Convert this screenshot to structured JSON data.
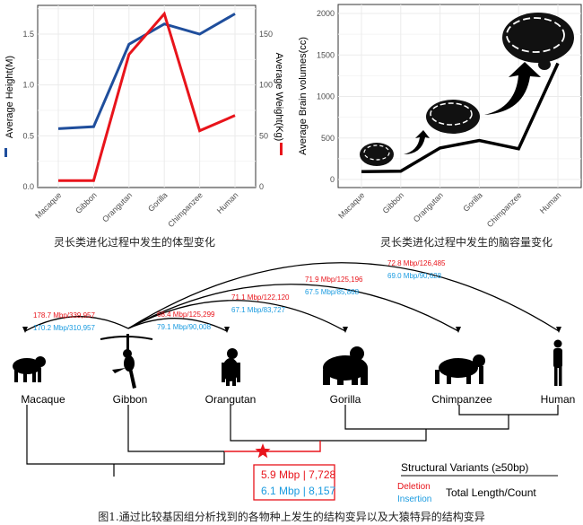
{
  "chart_data": [
    {
      "type": "line",
      "categories": [
        "Macaque",
        "Gibbon",
        "Orangutan",
        "Gorilla",
        "Chimpanzee",
        "Human"
      ],
      "series": [
        {
          "name": "Average Height(M)",
          "axis": "left",
          "color": "#1f4e9c",
          "values": [
            0.57,
            0.59,
            1.4,
            1.6,
            1.5,
            1.7
          ]
        },
        {
          "name": "Average Weight(Kg)",
          "axis": "right",
          "color": "#e8141b",
          "values": [
            6,
            6,
            130,
            170,
            55,
            70
          ]
        }
      ],
      "ylabel": "Average Height(M)",
      "y2label": "Average Weight(Kg)",
      "ylim": [
        0,
        1.78
      ],
      "y2lim": [
        0,
        178
      ],
      "yticks": [
        "0.0",
        "0.5",
        "1.0",
        "1.5"
      ],
      "y2ticks": [
        "0",
        "50",
        "100",
        "150"
      ],
      "grid": true,
      "caption": "灵长类进化过程中发生的体型变化"
    },
    {
      "type": "line",
      "categories": [
        "Macaque",
        "Gibbon",
        "Orangutan",
        "Gorilla",
        "Chimpanzee",
        "Human"
      ],
      "series": [
        {
          "color": "#000000",
          "values": [
            95,
            100,
            380,
            470,
            370,
            1400
          ]
        }
      ],
      "ylabel": "Average Brain volumes(cc)",
      "ylim": [
        -100,
        2100
      ],
      "yticks": [
        "0",
        "500",
        "1000",
        "1500",
        "2000"
      ],
      "grid": true,
      "caption": "灵长类进化过程中发生的脑容量变化"
    }
  ],
  "diagram": {
    "species": [
      "Macaque",
      "Gibbon",
      "Orangutan",
      "Gorilla",
      "Chimpanzee",
      "Human"
    ],
    "arcs": [
      {
        "to": "Macaque",
        "deletion": "178.7 Mbp/339,957",
        "insertion": "170.2 Mbp/310,957"
      },
      {
        "to": "Orangutan",
        "deletion": "68.4 Mbp/125,299",
        "insertion": "79.1 Mbp/90,008"
      },
      {
        "to": "Gorilla",
        "deletion": "71.1 Mbp/122,120",
        "insertion": "67.1 Mbp/83,727"
      },
      {
        "to": "Chimpanzee",
        "deletion": "71.9 Mbp/125,196",
        "insertion": "67.5 Mbp/85,868"
      },
      {
        "to": "Human",
        "deletion": "72.8 Mbp/126,485",
        "insertion": "69.0 Mbp/90,628"
      }
    ],
    "great_ape_box": {
      "deletion": "5.9 Mbp | 7,728",
      "insertion": "6.1 Mbp | 8,157"
    },
    "legend": {
      "title": "Structural Variants (≥50bp)",
      "deletion": "Deletion",
      "insertion": "Insertion",
      "metric": "Total Length/Count"
    },
    "colors": {
      "deletion": "#e8141b",
      "insertion": "#1a9be0"
    }
  },
  "figure_caption": "图1.通过比较基因组分析找到的各物种上发生的结构变异以及大猿特异的结构变异"
}
